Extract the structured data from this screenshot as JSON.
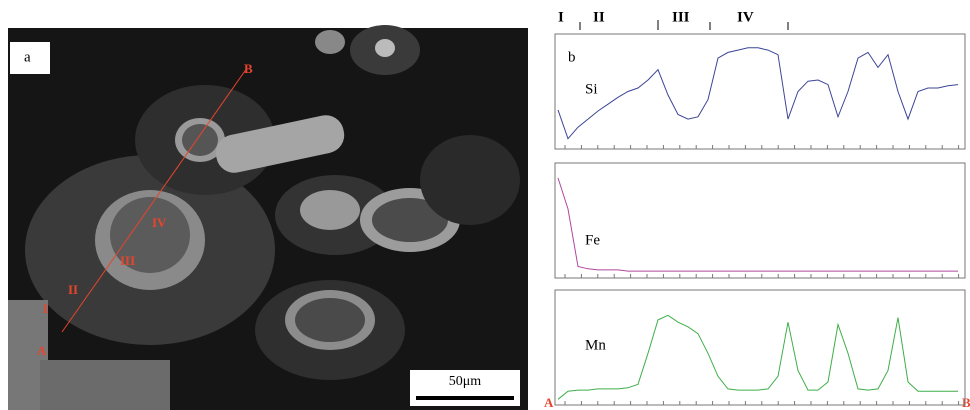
{
  "image": {
    "panel_label": "a",
    "point_a": "A",
    "point_b": "B",
    "zones": [
      "I",
      "II",
      "III",
      "IV"
    ],
    "scale_bar": "50μm"
  },
  "profiles": {
    "panel_label": "b",
    "zones": [
      "I",
      "II",
      "III",
      "IV"
    ],
    "start": "A",
    "end": "B",
    "series": [
      {
        "name": "Si",
        "color": "#3d4596",
        "values": [
          34,
          9,
          19,
          26,
          33,
          39,
          45,
          50,
          53,
          60,
          69,
          47,
          30,
          26,
          28,
          43,
          79,
          84,
          86,
          88,
          88,
          86,
          82,
          26,
          50,
          59,
          60,
          56,
          28,
          50,
          79,
          84,
          71,
          82,
          50,
          26,
          50,
          53,
          53,
          55,
          56
        ]
      },
      {
        "name": "Fe",
        "color": "#b0479e",
        "values": [
          87,
          60,
          10,
          8,
          7,
          7,
          7,
          6,
          6,
          6,
          6,
          6,
          6,
          6,
          6,
          6,
          6,
          6,
          6,
          6,
          6,
          6,
          6,
          6,
          6,
          6,
          6,
          6,
          6,
          6,
          6,
          6,
          6,
          6,
          6,
          6,
          6,
          6,
          6,
          6,
          6
        ]
      },
      {
        "name": "Mn",
        "color": "#3fae49",
        "values": [
          5,
          12,
          13,
          13,
          14,
          14,
          14,
          15,
          18,
          45,
          74,
          78,
          72,
          68,
          62,
          45,
          25,
          14,
          13,
          13,
          13,
          14,
          25,
          72,
          30,
          13,
          13,
          20,
          70,
          45,
          14,
          13,
          14,
          30,
          76,
          20,
          12,
          12,
          12,
          12,
          12
        ]
      }
    ]
  }
}
